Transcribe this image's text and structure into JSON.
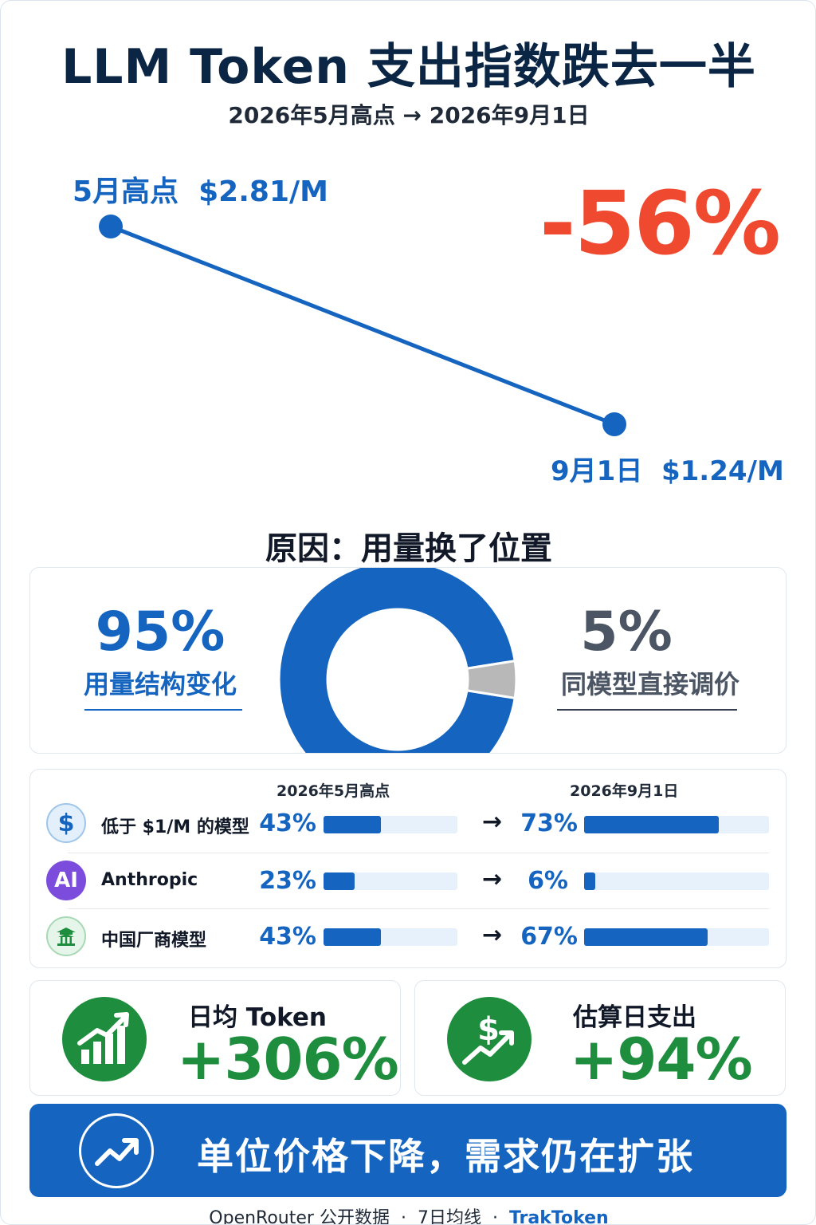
{
  "header": {
    "title": "LLM Token 支出指数跌去一半",
    "subtitle": "2026年5月高点 → 2026年9月1日"
  },
  "chart_data": [
    {
      "type": "line",
      "x": [
        "5月高点",
        "9月1日"
      ],
      "series": [
        {
          "values": [
            2.81,
            1.24
          ]
        }
      ],
      "point_labels": [
        "5月高点  $2.81/M",
        "9月1日  $1.24/M"
      ],
      "annotation": "-56%",
      "color": "#1565c0",
      "annotation_color": "#ef4a2f",
      "grid": false
    },
    {
      "type": "pie",
      "donut": true,
      "title": "原因：用量换了位置",
      "slices": [
        {
          "label": "用量结构变化",
          "value": 95,
          "display": "95%",
          "color": "#1565c0"
        },
        {
          "label": "同模型直接调价",
          "value": 5,
          "display": "5%",
          "color": "#b8b8b8"
        }
      ]
    },
    {
      "type": "bar",
      "columns": [
        "2026年5月高点",
        "2026年9月1日"
      ],
      "rows": [
        {
          "icon": "dollar-icon",
          "label": "低于 $1/M 的模型",
          "values": [
            43,
            73
          ],
          "display": [
            "43%",
            "73%"
          ]
        },
        {
          "icon": "ai-icon",
          "icon_text": "AI",
          "label": "Anthropic",
          "values": [
            23,
            6
          ],
          "display": [
            "23%",
            "6%"
          ]
        },
        {
          "icon": "pavilion-icon",
          "label": "中国厂商模型",
          "values": [
            43,
            67
          ],
          "display": [
            "43%",
            "67%"
          ]
        }
      ],
      "arrow": "→",
      "bar_color": "#1565c0",
      "track_color": "#e6f1fb"
    }
  ],
  "kpis": [
    {
      "icon": "growth-bars-icon",
      "label": "日均 Token",
      "value": "+306%"
    },
    {
      "icon": "money-growth-icon",
      "label": "估算日支出",
      "value": "+94%"
    }
  ],
  "banner": {
    "icon": "trend-up-icon",
    "text": "单位价格下降，需求仍在扩张"
  },
  "footer": {
    "source": "OpenRouter 公开数据",
    "sep1": "·",
    "method": "7日均线",
    "sep2": "·",
    "brand": "TrakToken"
  }
}
